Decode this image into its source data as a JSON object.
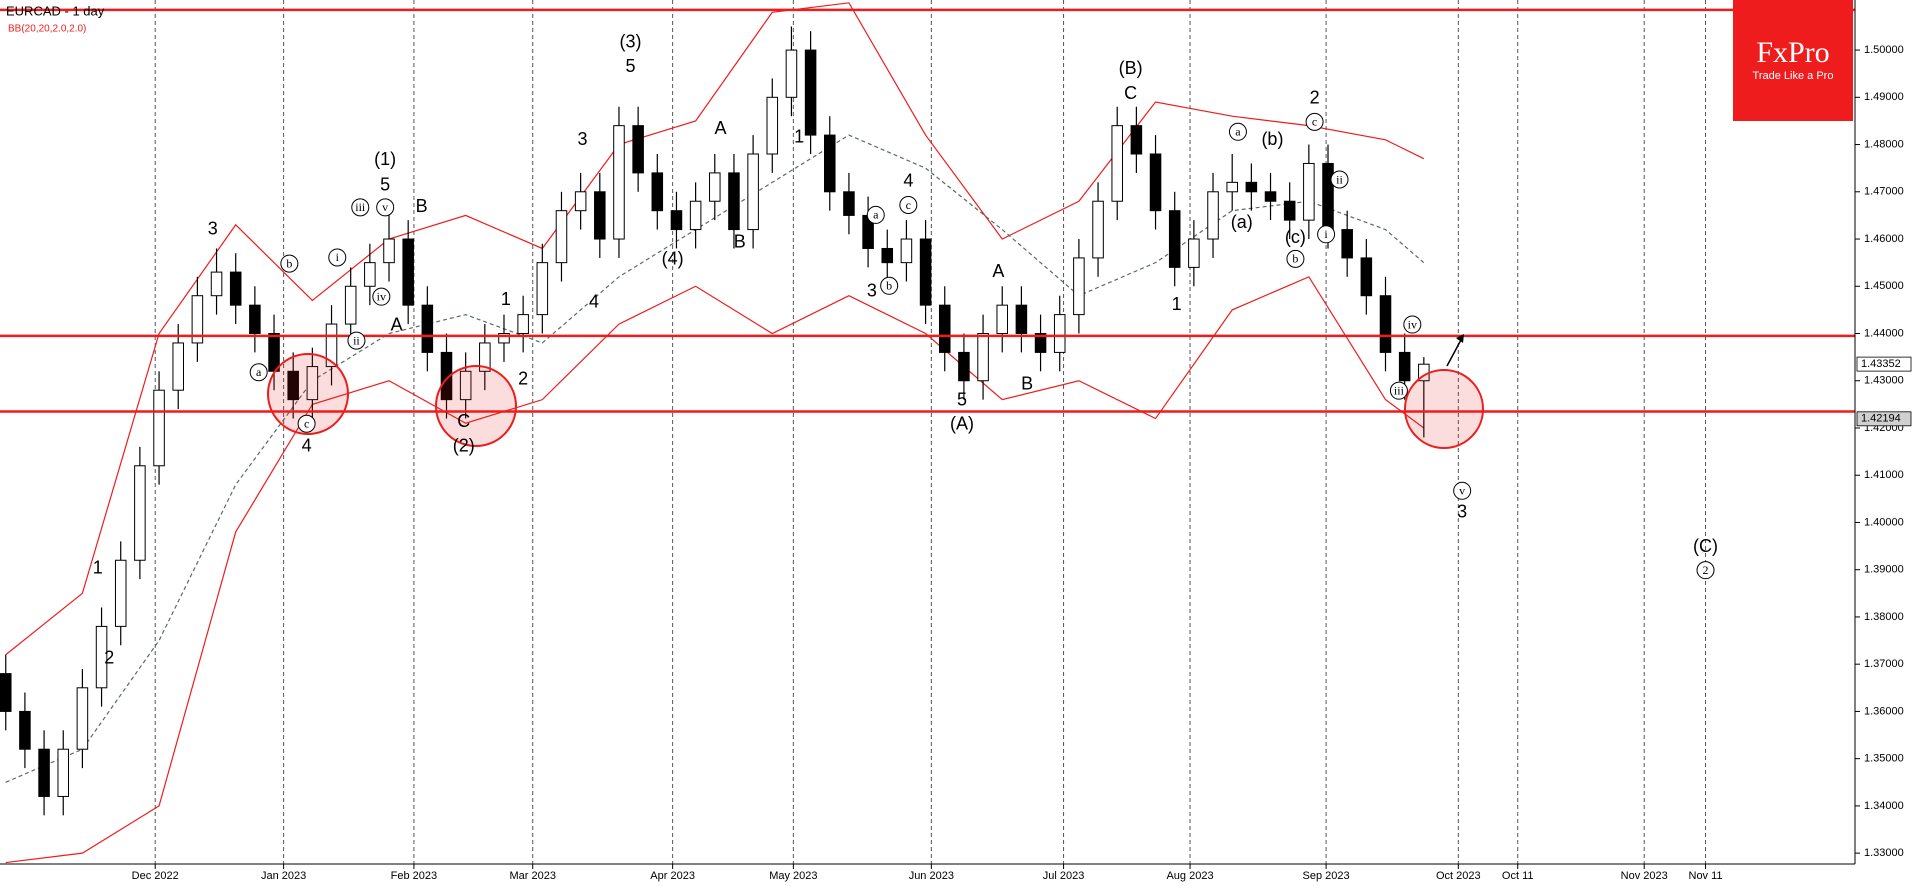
{
  "chart_data": {
    "type": "candlestick",
    "title": "EURCAD - 1 day",
    "indicator": "BB(20,20,2.0,2.0)",
    "brand": {
      "name": "FxPro",
      "tagline": "Trade Like a Pro"
    },
    "xlim": [
      -0.3,
      96.5
    ],
    "ylim": [
      1.3277,
      1.5106
    ],
    "xticks": [
      {
        "value": 7.8,
        "label": "Dec 2022"
      },
      {
        "value": 14.5,
        "label": "Jan 2023"
      },
      {
        "value": 21.3,
        "label": "Feb 2023"
      },
      {
        "value": 27.5,
        "label": "Mar 2023"
      },
      {
        "value": 34.8,
        "label": "Apr 2023"
      },
      {
        "value": 41.1,
        "label": "May 2023"
      },
      {
        "value": 48.3,
        "label": "Jun 2023"
      },
      {
        "value": 55.2,
        "label": "Jul 2023"
      },
      {
        "value": 61.8,
        "label": "Aug 2023"
      },
      {
        "value": 68.9,
        "label": "Sep 2023"
      },
      {
        "value": 75.8,
        "label": "Oct 2023"
      },
      {
        "value": 78.9,
        "label": "Oct 11"
      },
      {
        "value": 85.5,
        "label": "Nov 2023"
      },
      {
        "value": 88.7,
        "label": "Nov 11"
      }
    ],
    "yticks": [
      {
        "value": 1.33,
        "label": "1.33000"
      },
      {
        "value": 1.34,
        "label": "1.34000"
      },
      {
        "value": 1.35,
        "label": "1.35000"
      },
      {
        "value": 1.36,
        "label": "1.36000"
      },
      {
        "value": 1.37,
        "label": "1.37000"
      },
      {
        "value": 1.38,
        "label": "1.38000"
      },
      {
        "value": 1.39,
        "label": "1.39000"
      },
      {
        "value": 1.4,
        "label": "1.40000"
      },
      {
        "value": 1.41,
        "label": "1.41000"
      },
      {
        "value": 1.42,
        "label": "1.42000"
      },
      {
        "value": 1.43,
        "label": "1.43000"
      },
      {
        "value": 1.44,
        "label": "1.44000"
      },
      {
        "value": 1.45,
        "label": "1.45000"
      },
      {
        "value": 1.46,
        "label": "1.46000"
      },
      {
        "value": 1.47,
        "label": "1.47000"
      },
      {
        "value": 1.48,
        "label": "1.48000"
      },
      {
        "value": 1.49,
        "label": "1.49000"
      },
      {
        "value": 1.5,
        "label": "1.50000"
      }
    ],
    "up_color": "#ffffff",
    "down_color": "#000000",
    "candles": [
      [
        1.368,
        1.372,
        1.356,
        1.36
      ],
      [
        1.36,
        1.364,
        1.348,
        1.352
      ],
      [
        1.352,
        1.356,
        1.338,
        1.342
      ],
      [
        1.342,
        1.356,
        1.338,
        1.352
      ],
      [
        1.352,
        1.369,
        1.348,
        1.365
      ],
      [
        1.365,
        1.382,
        1.361,
        1.378
      ],
      [
        1.378,
        1.396,
        1.374,
        1.392
      ],
      [
        1.392,
        1.416,
        1.388,
        1.412
      ],
      [
        1.412,
        1.432,
        1.408,
        1.428
      ],
      [
        1.428,
        1.442,
        1.424,
        1.438
      ],
      [
        1.438,
        1.452,
        1.434,
        1.448
      ],
      [
        1.448,
        1.458,
        1.444,
        1.453
      ],
      [
        1.453,
        1.457,
        1.442,
        1.446
      ],
      [
        1.446,
        1.45,
        1.436,
        1.44
      ],
      [
        1.44,
        1.444,
        1.428,
        1.432
      ],
      [
        1.432,
        1.436,
        1.422,
        1.426
      ],
      [
        1.426,
        1.437,
        1.422,
        1.433
      ],
      [
        1.433,
        1.446,
        1.429,
        1.442
      ],
      [
        1.442,
        1.454,
        1.438,
        1.45
      ],
      [
        1.45,
        1.459,
        1.446,
        1.455
      ],
      [
        1.455,
        1.465,
        1.451,
        1.46
      ],
      [
        1.46,
        1.464,
        1.442,
        1.446
      ],
      [
        1.446,
        1.45,
        1.432,
        1.436
      ],
      [
        1.436,
        1.44,
        1.422,
        1.426
      ],
      [
        1.426,
        1.436,
        1.422,
        1.432
      ],
      [
        1.432,
        1.442,
        1.428,
        1.438
      ],
      [
        1.438,
        1.444,
        1.434,
        1.44
      ],
      [
        1.44,
        1.448,
        1.436,
        1.444
      ],
      [
        1.444,
        1.459,
        1.44,
        1.455
      ],
      [
        1.455,
        1.47,
        1.451,
        1.466
      ],
      [
        1.466,
        1.474,
        1.462,
        1.47
      ],
      [
        1.47,
        1.474,
        1.456,
        1.46
      ],
      [
        1.46,
        1.488,
        1.456,
        1.484
      ],
      [
        1.484,
        1.488,
        1.47,
        1.474
      ],
      [
        1.474,
        1.478,
        1.462,
        1.466
      ],
      [
        1.466,
        1.47,
        1.458,
        1.462
      ],
      [
        1.462,
        1.472,
        1.458,
        1.468
      ],
      [
        1.468,
        1.478,
        1.464,
        1.474
      ],
      [
        1.474,
        1.478,
        1.458,
        1.462
      ],
      [
        1.462,
        1.482,
        1.458,
        1.478
      ],
      [
        1.478,
        1.494,
        1.474,
        1.49
      ],
      [
        1.49,
        1.505,
        1.486,
        1.5
      ],
      [
        1.5,
        1.504,
        1.478,
        1.482
      ],
      [
        1.482,
        1.486,
        1.466,
        1.47
      ],
      [
        1.47,
        1.474,
        1.461,
        1.465
      ],
      [
        1.465,
        1.469,
        1.454,
        1.458
      ],
      [
        1.458,
        1.462,
        1.451,
        1.455
      ],
      [
        1.455,
        1.464,
        1.451,
        1.46
      ],
      [
        1.46,
        1.464,
        1.442,
        1.446
      ],
      [
        1.446,
        1.45,
        1.432,
        1.436
      ],
      [
        1.436,
        1.44,
        1.426,
        1.43
      ],
      [
        1.43,
        1.444,
        1.426,
        1.44
      ],
      [
        1.44,
        1.45,
        1.436,
        1.446
      ],
      [
        1.446,
        1.45,
        1.436,
        1.44
      ],
      [
        1.44,
        1.444,
        1.432,
        1.436
      ],
      [
        1.436,
        1.448,
        1.432,
        1.444
      ],
      [
        1.444,
        1.46,
        1.44,
        1.456
      ],
      [
        1.456,
        1.472,
        1.452,
        1.468
      ],
      [
        1.468,
        1.488,
        1.464,
        1.484
      ],
      [
        1.484,
        1.488,
        1.474,
        1.478
      ],
      [
        1.478,
        1.482,
        1.462,
        1.466
      ],
      [
        1.466,
        1.47,
        1.45,
        1.454
      ],
      [
        1.454,
        1.464,
        1.45,
        1.46
      ],
      [
        1.46,
        1.474,
        1.456,
        1.47
      ],
      [
        1.47,
        1.478,
        1.466,
        1.472
      ],
      [
        1.472,
        1.476,
        1.466,
        1.47
      ],
      [
        1.47,
        1.474,
        1.464,
        1.468
      ],
      [
        1.468,
        1.472,
        1.46,
        1.464
      ],
      [
        1.464,
        1.48,
        1.46,
        1.476
      ],
      [
        1.476,
        1.48,
        1.458,
        1.462
      ],
      [
        1.462,
        1.466,
        1.452,
        1.456
      ],
      [
        1.456,
        1.46,
        1.444,
        1.448
      ],
      [
        1.448,
        1.452,
        1.432,
        1.436
      ],
      [
        1.436,
        1.44,
        1.426,
        1.43
      ],
      [
        1.43,
        1.435,
        1.418,
        1.4335
      ]
    ],
    "bands": {
      "x": [
        0,
        4,
        8,
        12,
        16,
        20,
        24,
        28,
        32,
        36,
        40,
        44,
        48,
        52,
        56,
        60,
        64,
        68,
        72,
        74
      ],
      "upper": [
        1.372,
        1.385,
        1.44,
        1.463,
        1.447,
        1.46,
        1.465,
        1.458,
        1.48,
        1.485,
        1.508,
        1.51,
        1.482,
        1.46,
        1.468,
        1.489,
        1.486,
        1.484,
        1.481,
        1.477
      ],
      "middle": [
        1.345,
        1.352,
        1.375,
        1.408,
        1.43,
        1.44,
        1.444,
        1.438,
        1.452,
        1.462,
        1.472,
        1.482,
        1.475,
        1.462,
        1.448,
        1.455,
        1.466,
        1.468,
        1.462,
        1.455
      ],
      "lower": [
        1.328,
        1.33,
        1.34,
        1.398,
        1.425,
        1.43,
        1.421,
        1.426,
        1.442,
        1.45,
        1.44,
        1.448,
        1.44,
        1.426,
        1.43,
        1.422,
        1.445,
        1.452,
        1.426,
        1.42
      ],
      "band_color": "#ee1c1c",
      "middle_color": "#5a6b66"
    },
    "levels": [
      1.5085,
      1.4395,
      1.4235
    ],
    "level_color": "#ee1c1c",
    "price_labels": [
      {
        "value": 1.43352,
        "label": "1.43352"
      },
      {
        "value": 1.42194,
        "label": "1.42194"
      }
    ],
    "annotations": [
      {
        "text": "3",
        "x": 10.8,
        "y": 1.462
      },
      {
        "text": "1",
        "x": 4.8,
        "y": 1.3902
      },
      {
        "text": "2",
        "x": 5.4,
        "y": 1.3711
      },
      {
        "text": "a",
        "x": 13.2,
        "y": 1.4318,
        "circled": true
      },
      {
        "text": "b",
        "x": 14.8,
        "y": 1.4548,
        "circled": true
      },
      {
        "text": "c",
        "x": 15.7,
        "y": 1.4209,
        "circled": true
      },
      {
        "text": "4",
        "x": 15.7,
        "y": 1.416
      },
      {
        "text": "(1)",
        "x": 19.8,
        "y": 1.4767
      },
      {
        "text": "5",
        "x": 19.8,
        "y": 1.4713
      },
      {
        "text": "i",
        "x": 17.3,
        "y": 1.4561,
        "circled": true
      },
      {
        "text": "iii",
        "x": 18.5,
        "y": 1.4667,
        "circled": true
      },
      {
        "text": "v",
        "x": 19.8,
        "y": 1.4667,
        "circled": true
      },
      {
        "text": "iv",
        "x": 19.6,
        "y": 1.4478,
        "circled": true
      },
      {
        "text": "ii",
        "x": 18.3,
        "y": 1.4385,
        "circled": true
      },
      {
        "text": "B",
        "x": 21.7,
        "y": 1.4667
      },
      {
        "text": "A",
        "x": 20.4,
        "y": 1.4416
      },
      {
        "text": "1",
        "x": 26.1,
        "y": 1.447
      },
      {
        "text": "2",
        "x": 27.0,
        "y": 1.4302
      },
      {
        "text": "C",
        "x": 23.9,
        "y": 1.4212
      },
      {
        "text": "(2)",
        "x": 23.9,
        "y": 1.416
      },
      {
        "text": "(3)",
        "x": 32.6,
        "y": 1.5016
      },
      {
        "text": "5",
        "x": 32.6,
        "y": 1.4964
      },
      {
        "text": "3",
        "x": 30.1,
        "y": 1.4809
      },
      {
        "text": "4",
        "x": 30.7,
        "y": 1.4465
      },
      {
        "text": "(4)",
        "x": 34.8,
        "y": 1.4556
      },
      {
        "text": "A",
        "x": 37.3,
        "y": 1.4832
      },
      {
        "text": "B",
        "x": 38.3,
        "y": 1.4592
      },
      {
        "text": "1",
        "x": 41.4,
        "y": 1.4814
      },
      {
        "text": "4",
        "x": 47.1,
        "y": 1.4721
      },
      {
        "text": "c",
        "x": 47.1,
        "y": 1.4672,
        "circled": true
      },
      {
        "text": "a",
        "x": 45.4,
        "y": 1.4651,
        "circled": true
      },
      {
        "text": "b",
        "x": 46.1,
        "y": 1.4501,
        "circled": true
      },
      {
        "text": "3",
        "x": 45.2,
        "y": 1.4488
      },
      {
        "text": "5",
        "x": 49.9,
        "y": 1.4258
      },
      {
        "text": "(A)",
        "x": 49.9,
        "y": 1.4207
      },
      {
        "text": "A",
        "x": 51.8,
        "y": 1.453
      },
      {
        "text": "B",
        "x": 53.3,
        "y": 1.4292
      },
      {
        "text": "(B)",
        "x": 58.7,
        "y": 1.4959
      },
      {
        "text": "C",
        "x": 58.7,
        "y": 1.4907
      },
      {
        "text": "1",
        "x": 61.1,
        "y": 1.446
      },
      {
        "text": "2",
        "x": 68.3,
        "y": 1.4897
      },
      {
        "text": "c",
        "x": 68.3,
        "y": 1.4848,
        "circled": true
      },
      {
        "text": "a",
        "x": 64.3,
        "y": 1.4827,
        "circled": true
      },
      {
        "text": "(b)",
        "x": 66.1,
        "y": 1.4809
      },
      {
        "text": "(a)",
        "x": 64.5,
        "y": 1.4633
      },
      {
        "text": "(c)",
        "x": 67.3,
        "y": 1.4602
      },
      {
        "text": "b",
        "x": 67.3,
        "y": 1.4558,
        "circled": true
      },
      {
        "text": "ii",
        "x": 69.6,
        "y": 1.4726,
        "circled": true
      },
      {
        "text": "i",
        "x": 68.9,
        "y": 1.461,
        "circled": true
      },
      {
        "text": "iv",
        "x": 73.4,
        "y": 1.4419,
        "circled": true
      },
      {
        "text": "iii",
        "x": 72.7,
        "y": 1.4279,
        "circled": true
      },
      {
        "text": "v",
        "x": 76.0,
        "y": 1.4067,
        "circled": true
      },
      {
        "text": "3",
        "x": 76.0,
        "y": 1.4021
      },
      {
        "text": "(C)",
        "x": 88.7,
        "y": 1.3948
      },
      {
        "text": "2",
        "x": 88.7,
        "y": 1.3899,
        "circled": true
      }
    ]
  }
}
